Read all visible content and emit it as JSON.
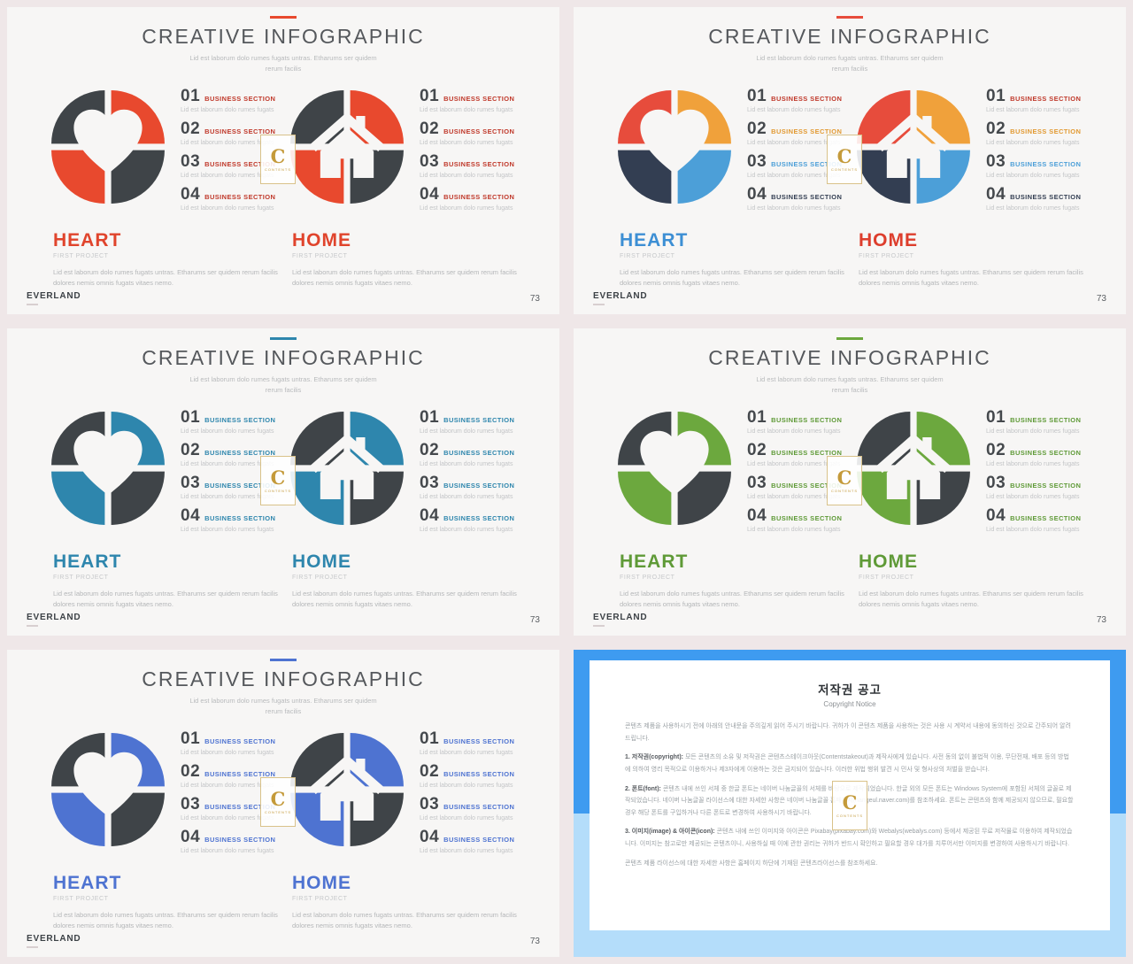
{
  "page": {
    "background": "#EFE7E8",
    "slide_background": "#F7F6F5"
  },
  "common": {
    "title": "CREATIVE INFOGRAPHIC",
    "subtitle_line1": "Lid est laborum dolo rumes fugats untras. Etharums ser quidem",
    "subtitle_line2": "rerum facilis",
    "items": [
      {
        "number": "01",
        "label": "BUSINESS SECTION",
        "desc": "Lid est laborum dolo rumes fugats"
      },
      {
        "number": "02",
        "label": "BUSINESS SECTION",
        "desc": "Lid est laborum dolo rumes fugats"
      },
      {
        "number": "03",
        "label": "BUSINESS SECTION",
        "desc": "Lid est laborum dolo rumes fugats"
      },
      {
        "number": "04",
        "label": "BUSINESS SECTION",
        "desc": "Lid est laborum dolo rumes fugats"
      }
    ],
    "heart_heading": "HEART",
    "home_heading": "HOME",
    "project_subtitle": "FIRST PROJECT",
    "project_desc": "Lid est laborum dolo rumes fugats untras. Etharums ser quidem rerum facilis dolores nemis omnis fugats vitaes nemo.",
    "footer_brand": "EVERLAND",
    "page_number": "73",
    "watermark": {
      "letter": "C",
      "caption": "CONTENTS"
    }
  },
  "slides": [
    {
      "name": "red-dark",
      "dash_color": "#E8492E",
      "quadrants": {
        "tl": "#3F4448",
        "tr": "#E8492E",
        "bl": "#E8492E",
        "br": "#3F4448"
      },
      "item_colors": [
        "#C0392B",
        "#C0392B",
        "#C0392B",
        "#C0392B"
      ],
      "heart_title_color": "#E0442C",
      "home_title_color": "#E0442C"
    },
    {
      "name": "multicolor",
      "dash_color": "#E74C3C",
      "quadrants": {
        "tl": "#E74C3C",
        "tr": "#F0A13B",
        "bl": "#333E52",
        "br": "#4C9FD8"
      },
      "item_colors": [
        "#C0392B",
        "#E29A33",
        "#4C9FD8",
        "#333E52"
      ],
      "heart_title_color": "#3D8FD4",
      "home_title_color": "#DD3E2D"
    },
    {
      "name": "teal-dark",
      "dash_color": "#2E86AD",
      "quadrants": {
        "tl": "#3F4448",
        "tr": "#2E86AD",
        "bl": "#2E86AD",
        "br": "#3F4448"
      },
      "item_colors": [
        "#2E86AD",
        "#2E86AD",
        "#2E86AD",
        "#2E86AD"
      ],
      "heart_title_color": "#2E86AD",
      "home_title_color": "#2E86AD"
    },
    {
      "name": "green-dark",
      "dash_color": "#6CA83E",
      "quadrants": {
        "tl": "#3F4448",
        "tr": "#6CA83E",
        "bl": "#6CA83E",
        "br": "#3F4448"
      },
      "item_colors": [
        "#5F9A37",
        "#5F9A37",
        "#5F9A37",
        "#5F9A37"
      ],
      "heart_title_color": "#5F9A37",
      "home_title_color": "#5F9A37"
    },
    {
      "name": "blue-dark",
      "dash_color": "#4E73D1",
      "quadrants": {
        "tl": "#3F4448",
        "tr": "#4E73D1",
        "bl": "#4E73D1",
        "br": "#3F4448"
      },
      "item_colors": [
        "#4E73D1",
        "#4E73D1",
        "#4E73D1",
        "#4E73D1"
      ],
      "heart_title_color": "#4E73D1",
      "home_title_color": "#4E73D1"
    }
  ],
  "copyright": {
    "top_color": "#3E9BF0",
    "bottom_color": "#B4DDFA",
    "title": "저작권 공고",
    "subtitle": "Copyright Notice",
    "paragraphs": [
      {
        "lead": "",
        "text": "콘텐츠 제품을 사용하시기 전에 아래의 안내문을 주의깊게 읽어 주시기 바랍니다. 귀하가 이 콘텐츠 제품을 사용하는 것은 사용 시 계약서 내용에 동의하신 것으로 간주되어 알려드립니다."
      },
      {
        "lead": "1. 저작권(copyright):",
        "text": "모든 콘텐츠의 소유 및 저작권은 콘텐츠스테이크아웃(Contentstakeout)과 제작사에게 있습니다. 사전 동의 없이 불법적 이용, 무단전재, 배포 등의 방법에 의하여 영리 목적으로 이용하거나 제3자에게 이용하는 것은 금지되어 있습니다. 이러한 위법 행위 발견 시 민사 및 형사상의 처벌을 받습니다."
      },
      {
        "lead": "2. 폰트(font):",
        "text": "콘텐츠 내에 쓰인 서체 중 한글 폰트는 네이버 나눔글꼴의 서체를 바탕으로 제작되었습니다. 한글 외의 모든 폰트는 Windows System에 포함된 서체의 글꼴로 제작되었습니다. 네이버 나눔글꼴 라이선스에 대한 자세한 사항은 네이버 나눔글꼴 홈페이지(hangeul.naver.com)를 참조하세요. 폰트는 콘텐츠와 함께 제공되지 않으므로, 필요할 경우 해당 폰트를 구입하거나 다른 폰트로 변경하여 사용하시기 바랍니다."
      },
      {
        "lead": "3. 이미지(image) & 아이콘(icon):",
        "text": "콘텐츠 내에 쓰인 이미지와 아이콘은 Pixabay(pixabay.com)와 Webalys(webalys.com) 등에서 제공된 무료 저작물로 이용하여 제작되었습니다. 이미지는 참고로만 제공되는 콘텐츠이니, 사용하실 때 이에 관한 권리는 귀하가 반드시 확인하고 필요할 경우 대가를 치루어서만 이미지를 변경하여 사용하시기 바랍니다."
      },
      {
        "lead": "",
        "text": "콘텐츠 제품 라이선스에 대한 자세한 사항은 홈페이지 하단에 기재된 콘텐츠라이선스를 참조하세요."
      }
    ]
  }
}
